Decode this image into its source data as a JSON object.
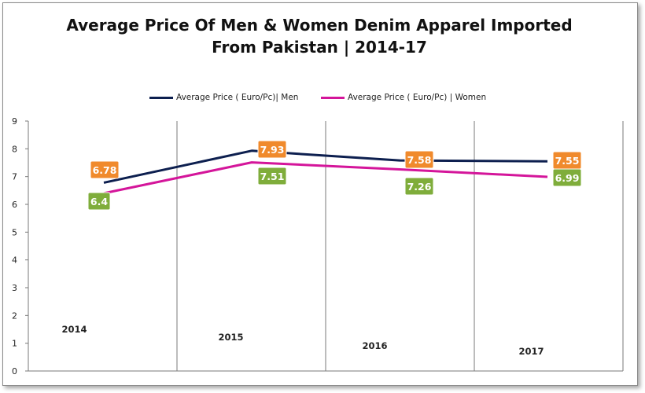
{
  "chart_data": {
    "type": "line",
    "title_line1": "Average Price Of  Men & Women Denim Apparel Imported",
    "title_line2": "From Pakistan | 2014-17",
    "xlabel": "",
    "ylabel": "",
    "categories": [
      "2014",
      "2015",
      "2016",
      "2017"
    ],
    "ylim": [
      0,
      9
    ],
    "y_ticks": [
      "0",
      "1",
      "2",
      "3",
      "4",
      "5",
      "6",
      "7",
      "8",
      "9"
    ],
    "grid": "vertical lines between categories",
    "legend_position": "top",
    "series": [
      {
        "name": "Average Price ( Euro/Pc)| Men",
        "color": "#0d1f4f",
        "values": [
          6.78,
          7.93,
          7.58,
          7.55
        ],
        "labels": [
          "6.78",
          "7.93",
          "7.58",
          "7.55"
        ],
        "label_color": "#f08a2c"
      },
      {
        "name": "Average Price ( Euro/Pc) | Women",
        "color": "#d4159a",
        "values": [
          6.4,
          7.51,
          7.26,
          6.99
        ],
        "labels": [
          "6.4",
          "7.51",
          "7.26",
          "6.99"
        ],
        "label_color": "#7fad3b"
      }
    ]
  }
}
